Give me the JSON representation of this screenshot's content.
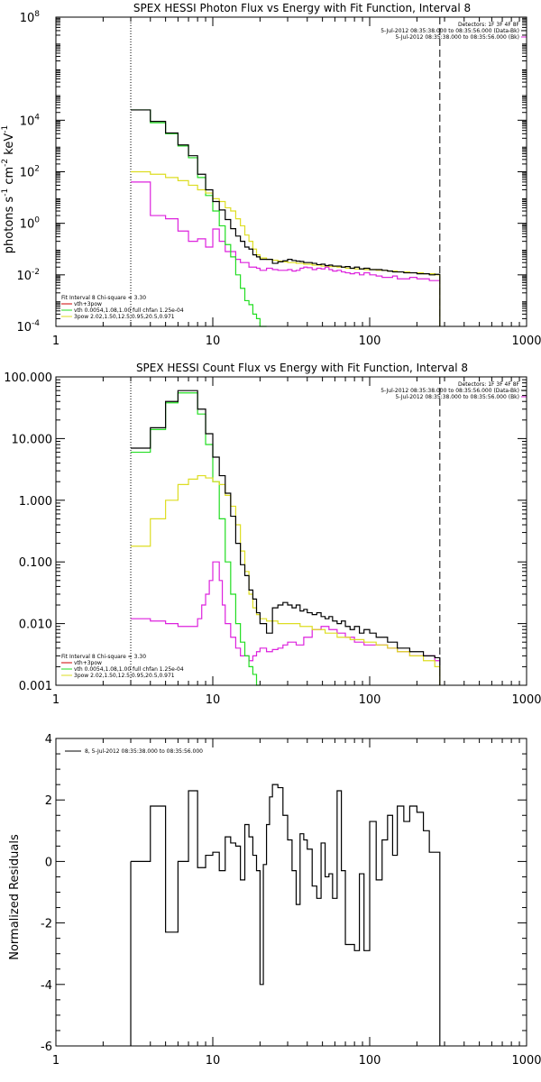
{
  "colors": {
    "data": "#000000",
    "bkg": "#cc0000",
    "total": "#ff0000",
    "vth": "#22dd22",
    "pow": "#dddd22",
    "pow_line": "#dd22dd",
    "vline": "#dd8800"
  },
  "chart_data": [
    {
      "type": "line",
      "title": "SPEX HESSI Photon Flux vs Energy with Fit Function, Interval 8",
      "ylabel": "photons s-1 cm-2 keV-1",
      "ylabel_parts": [
        "photons s",
        "-1",
        " cm",
        "-2",
        " keV",
        "-1"
      ],
      "xlim": [
        1,
        1000
      ],
      "ylim": [
        0.0001,
        100000000
      ],
      "xscale": "log",
      "yscale": "log",
      "x_ticks": [
        "1",
        "10",
        "100",
        "1000"
      ],
      "y_ticks": [
        {
          "base": "10",
          "exp": "8"
        },
        {
          "base": "10",
          "exp": "4"
        },
        {
          "base": "10",
          "exp": "2"
        },
        {
          "base": "10",
          "exp": "0"
        },
        {
          "base": "10",
          "exp": "-2"
        },
        {
          "base": "10",
          "exp": "-4"
        }
      ],
      "y_tick_values": [
        100000000,
        10000,
        100,
        1,
        0.01,
        0.0001
      ],
      "legend_top": [
        "Detectors: 1F 3F 4F 8F",
        "5-Jul-2012 08:35:38.000 to 08:35:56.000 (Data-Bk)",
        "5-Jul-2012 08:35:38.000 to 08:35:56.000 (Bk)"
      ],
      "legend_bottom": [
        "Fit Interval 8    Chi-square = 3.30",
        "vth+3pow",
        "vth 0.0054,1.08,1.00  full chfan 1.25e-04",
        "3pow 2.02,1.50,12.5,0.95,20.5,0.971"
      ],
      "vlines": [
        3.0,
        280
      ],
      "series": [
        {
          "name": "Data-Bk",
          "x": [
            3,
            3.5,
            4,
            4.5,
            5,
            5.5,
            6,
            6.5,
            7,
            7.5,
            8,
            8.5,
            9,
            9.5,
            10,
            10.5,
            11,
            11.5,
            12,
            12.5,
            13,
            14,
            15,
            16,
            17,
            18,
            19,
            20,
            22,
            24,
            26,
            28,
            30,
            32,
            34,
            36,
            38,
            40,
            43,
            46,
            49,
            52,
            55,
            58,
            62,
            66,
            70,
            75,
            80,
            86,
            92,
            100,
            110,
            120,
            130,
            140,
            150,
            165,
            180,
            200,
            220,
            240,
            260,
            280
          ],
          "y": [
            25000,
            25000,
            9000,
            9000,
            3200,
            3200,
            1100,
            1100,
            420,
            420,
            80,
            80,
            20,
            20,
            7,
            7,
            3.3,
            3.3,
            1.4,
            1.4,
            0.62,
            0.32,
            0.2,
            0.12,
            0.1,
            0.06,
            0.05,
            0.04,
            0.04,
            0.028,
            0.032,
            0.035,
            0.04,
            0.036,
            0.034,
            0.033,
            0.03,
            0.03,
            0.028,
            0.025,
            0.026,
            0.023,
            0.024,
            0.022,
            0.022,
            0.02,
            0.021,
            0.018,
            0.02,
            0.017,
            0.018,
            0.016,
            0.016,
            0.015,
            0.014,
            0.013,
            0.013,
            0.012,
            0.012,
            0.011,
            0.011,
            0.01,
            0.0105,
            0.0001
          ]
        },
        {
          "name": "vth",
          "x": [
            3,
            3.5,
            4,
            4.5,
            5,
            5.5,
            6,
            6.5,
            7,
            7.5,
            8,
            8.5,
            9,
            9.5,
            10,
            10.5,
            11,
            11.5,
            12,
            12.5,
            13,
            14,
            15,
            16,
            17,
            18,
            19,
            20,
            22
          ],
          "y": [
            25000,
            25000,
            8000,
            8000,
            3000,
            3000,
            1000,
            1000,
            350,
            350,
            60,
            60,
            12,
            12,
            3,
            3,
            0.8,
            0.8,
            0.15,
            0.15,
            0.05,
            0.01,
            0.003,
            0.001,
            0.0007,
            0.0003,
            0.0002,
            0.0001,
            0.0001
          ]
        },
        {
          "name": "3pow",
          "x": [
            3,
            3.5,
            4,
            4.5,
            5,
            5.5,
            6,
            6.5,
            7,
            7.5,
            8,
            8.5,
            9,
            9.5,
            10,
            10.5,
            11,
            11.5,
            12,
            12.5,
            13,
            14,
            15,
            16,
            17,
            18,
            19,
            20,
            22,
            24,
            26,
            28,
            30,
            34,
            38,
            43,
            49,
            55,
            62,
            70,
            80,
            92,
            110,
            130,
            150,
            180,
            220,
            260,
            280
          ],
          "y": [
            100,
            100,
            80,
            80,
            60,
            60,
            45,
            45,
            30,
            30,
            20,
            20,
            15,
            15,
            9,
            9,
            7,
            7,
            4,
            4,
            3,
            1.5,
            0.8,
            0.35,
            0.2,
            0.1,
            0.06,
            0.045,
            0.04,
            0.037,
            0.034,
            0.032,
            0.03,
            0.028,
            0.026,
            0.024,
            0.022,
            0.021,
            0.02,
            0.018,
            0.017,
            0.016,
            0.015,
            0.014,
            0.013,
            0.012,
            0.011,
            0.01,
            0.0001
          ]
        },
        {
          "name": "bkg",
          "x": [
            3,
            3.5,
            4,
            4.5,
            5,
            5.5,
            6,
            6.5,
            7,
            7.5,
            8,
            8.5,
            9,
            9.5,
            10,
            10.5,
            11,
            11.5,
            12,
            12.5,
            13,
            14,
            15,
            16,
            17,
            18,
            19,
            20,
            22,
            24,
            26,
            28,
            30,
            32,
            34,
            36,
            38,
            40,
            43,
            46,
            49,
            52,
            55,
            58,
            62,
            66,
            70,
            75,
            80,
            86,
            92,
            100,
            110,
            120,
            130,
            140,
            150,
            165,
            180,
            200,
            220,
            240,
            260,
            280
          ],
          "y": [
            40,
            40,
            2,
            2,
            1.5,
            1.5,
            0.5,
            0.5,
            0.2,
            0.2,
            0.25,
            0.25,
            0.12,
            0.12,
            0.6,
            0.6,
            0.2,
            0.2,
            0.08,
            0.08,
            0.08,
            0.04,
            0.03,
            0.03,
            0.02,
            0.02,
            0.018,
            0.015,
            0.018,
            0.016,
            0.015,
            0.015,
            0.016,
            0.014,
            0.015,
            0.018,
            0.02,
            0.019,
            0.016,
            0.018,
            0.017,
            0.02,
            0.016,
            0.014,
            0.015,
            0.013,
            0.012,
            0.011,
            0.012,
            0.01,
            0.012,
            0.01,
            0.009,
            0.008,
            0.008,
            0.009,
            0.007,
            0.007,
            0.008,
            0.007,
            0.007,
            0.006,
            0.006,
            0.006
          ]
        }
      ]
    },
    {
      "type": "line",
      "title": "SPEX HESSI Count Flux vs Energy with Fit Function, Interval 8",
      "ylabel": "",
      "xlim": [
        1,
        1000
      ],
      "ylim": [
        0.001,
        100
      ],
      "xscale": "log",
      "yscale": "log",
      "x_ticks": [
        "1",
        "10",
        "100",
        "1000"
      ],
      "y_ticks": [
        "100.000",
        "10.000",
        "1.000",
        "0.100",
        "0.010",
        "0.001"
      ],
      "y_tick_values": [
        100,
        10,
        1,
        0.1,
        0.01,
        0.001
      ],
      "legend_top": [
        "Detectors: 1F 3F 4F 8F",
        "5-Jul-2012 08:35:38.000 to 08:35:56.000 (Data-Bk)",
        "5-Jul-2012 08:35:38.000 to 08:35:56.000 (Bk)"
      ],
      "legend_bottom": [
        "Fit Interval 8    Chi-square = 3.30",
        "vth+3pow",
        "vth 0.0054,1.08,1.00  full chfan 1.25e-04",
        "3pow 2.02,1.50,12.5,0.95,20.5,0.971"
      ],
      "vlines": [
        3.0,
        280
      ],
      "series": [
        {
          "name": "Data-Bk",
          "x": [
            3,
            3.5,
            4,
            4.5,
            5,
            5.5,
            6,
            6.5,
            7,
            7.5,
            8,
            8.5,
            9,
            9.5,
            10,
            10.5,
            11,
            11.5,
            12,
            12.5,
            13,
            14,
            15,
            16,
            17,
            18,
            19,
            20,
            22,
            24,
            26,
            28,
            30,
            32,
            34,
            36,
            38,
            40,
            43,
            46,
            49,
            52,
            55,
            58,
            62,
            66,
            70,
            75,
            80,
            86,
            92,
            100,
            110,
            120,
            130,
            140,
            150,
            165,
            180,
            200,
            220,
            240,
            260,
            280
          ],
          "y": [
            7,
            7,
            15,
            15,
            40,
            40,
            60,
            60,
            60,
            60,
            30,
            30,
            12,
            12,
            5,
            5,
            2.5,
            2.5,
            1.3,
            1.3,
            0.55,
            0.2,
            0.09,
            0.06,
            0.035,
            0.025,
            0.015,
            0.01,
            0.007,
            0.018,
            0.02,
            0.022,
            0.02,
            0.018,
            0.02,
            0.016,
            0.017,
            0.015,
            0.014,
            0.015,
            0.013,
            0.012,
            0.013,
            0.011,
            0.01,
            0.011,
            0.009,
            0.008,
            0.009,
            0.007,
            0.008,
            0.007,
            0.006,
            0.006,
            0.005,
            0.005,
            0.004,
            0.004,
            0.0035,
            0.0035,
            0.003,
            0.003,
            0.0028,
            0.001
          ]
        },
        {
          "name": "vth",
          "x": [
            3,
            3.5,
            4,
            4.5,
            5,
            5.5,
            6,
            6.5,
            7,
            7.5,
            8,
            8.5,
            9,
            9.5,
            10,
            10.5,
            11,
            11.5,
            12,
            12.5,
            13,
            14,
            15,
            16,
            17,
            18,
            19,
            20
          ],
          "y": [
            6,
            6,
            14,
            14,
            38,
            38,
            55,
            55,
            55,
            55,
            25,
            25,
            8,
            8,
            2,
            2,
            0.5,
            0.5,
            0.1,
            0.1,
            0.03,
            0.01,
            0.005,
            0.003,
            0.002,
            0.0015,
            0.001,
            0.001
          ]
        },
        {
          "name": "3pow",
          "x": [
            3,
            3.5,
            4,
            4.5,
            5,
            5.5,
            6,
            6.5,
            7,
            7.5,
            8,
            8.5,
            9,
            9.5,
            10,
            10.5,
            11,
            11.5,
            12,
            12.5,
            13,
            14,
            15,
            16,
            17,
            18,
            19,
            20,
            22,
            26,
            30,
            36,
            43,
            52,
            62,
            75,
            92,
            110,
            130,
            150,
            180,
            220,
            260,
            280
          ],
          "y": [
            0.18,
            0.18,
            0.5,
            0.5,
            1.0,
            1.0,
            1.8,
            1.8,
            2.2,
            2.2,
            2.5,
            2.5,
            2.3,
            2.3,
            2.0,
            2.0,
            1.8,
            1.8,
            1.2,
            1.2,
            0.8,
            0.4,
            0.15,
            0.07,
            0.03,
            0.018,
            0.014,
            0.012,
            0.011,
            0.01,
            0.01,
            0.009,
            0.008,
            0.007,
            0.006,
            0.0055,
            0.005,
            0.0045,
            0.004,
            0.0035,
            0.003,
            0.0025,
            0.002,
            0.001
          ]
        },
        {
          "name": "bkg",
          "x": [
            3,
            4,
            5,
            6,
            7,
            8,
            8.5,
            9,
            9.5,
            10,
            10.5,
            11,
            11.5,
            12,
            13,
            14,
            15,
            16,
            17,
            18,
            19,
            20,
            22,
            24,
            26,
            28,
            30,
            34,
            38,
            43,
            49,
            55,
            62,
            70,
            80,
            92,
            110,
            130,
            150,
            180,
            220,
            260,
            280
          ],
          "y": [
            0.012,
            0.011,
            0.01,
            0.009,
            0.009,
            0.012,
            0.02,
            0.03,
            0.05,
            0.1,
            0.1,
            0.05,
            0.02,
            0.01,
            0.006,
            0.004,
            0.003,
            0.003,
            0.0025,
            0.003,
            0.0035,
            0.004,
            0.0035,
            0.0038,
            0.004,
            0.0045,
            0.005,
            0.0045,
            0.006,
            0.008,
            0.009,
            0.008,
            0.007,
            0.006,
            0.005,
            0.0045,
            0.0045,
            0.004,
            0.0035,
            0.003,
            0.003,
            0.0025,
            0.0025
          ]
        }
      ]
    },
    {
      "type": "line",
      "title": "",
      "ylabel": "Normalized Residuals",
      "xlim": [
        1,
        1000
      ],
      "ylim": [
        -6,
        4
      ],
      "xscale": "log",
      "yscale": "linear",
      "x_ticks": [
        "1",
        "10",
        "100",
        "1000"
      ],
      "y_ticks": [
        "4",
        "2",
        "0",
        "-2",
        "-4",
        "-6"
      ],
      "y_tick_values": [
        4,
        2,
        0,
        -2,
        -4,
        -6
      ],
      "legend_top": [
        "8, 5-Jul-2012 08:35:38.000 to 08:35:56.000"
      ],
      "series": [
        {
          "name": "residuals",
          "x": [
            3,
            3.5,
            4,
            4.5,
            5,
            5.5,
            6,
            6.5,
            7,
            7.5,
            8,
            8.5,
            9,
            9.5,
            10,
            10.5,
            11,
            11.5,
            12,
            12.5,
            13,
            14,
            15,
            16,
            17,
            18,
            19,
            20,
            21,
            22,
            23,
            24,
            26,
            28,
            30,
            32,
            34,
            36,
            38,
            40,
            43,
            46,
            49,
            52,
            55,
            58,
            62,
            66,
            70,
            75,
            80,
            86,
            92,
            100,
            110,
            120,
            130,
            140,
            150,
            165,
            180,
            200,
            220,
            240,
            260,
            280
          ],
          "y": [
            0,
            0,
            1.8,
            1.8,
            -2.3,
            -2.3,
            0,
            0,
            2.3,
            2.3,
            -0.2,
            -0.2,
            0.2,
            0.2,
            0.3,
            0.3,
            -0.3,
            -0.3,
            0.8,
            0.8,
            0.6,
            0.5,
            -0.6,
            1.2,
            0.8,
            0.2,
            -0.3,
            -4,
            -0.1,
            1.2,
            2.1,
            2.5,
            2.4,
            1.5,
            0.7,
            -0.3,
            -1.4,
            0.9,
            0.7,
            0.4,
            -0.8,
            -1.2,
            0.6,
            -0.5,
            -0.4,
            -1.2,
            2.3,
            -0.3,
            -2.7,
            -2.7,
            -2.9,
            -0.4,
            -2.9,
            1.3,
            -0.6,
            0.7,
            1.5,
            0.2,
            1.8,
            1.3,
            1.8,
            1.6,
            1.0,
            0.3,
            0.3,
            -6
          ]
        }
      ]
    }
  ]
}
